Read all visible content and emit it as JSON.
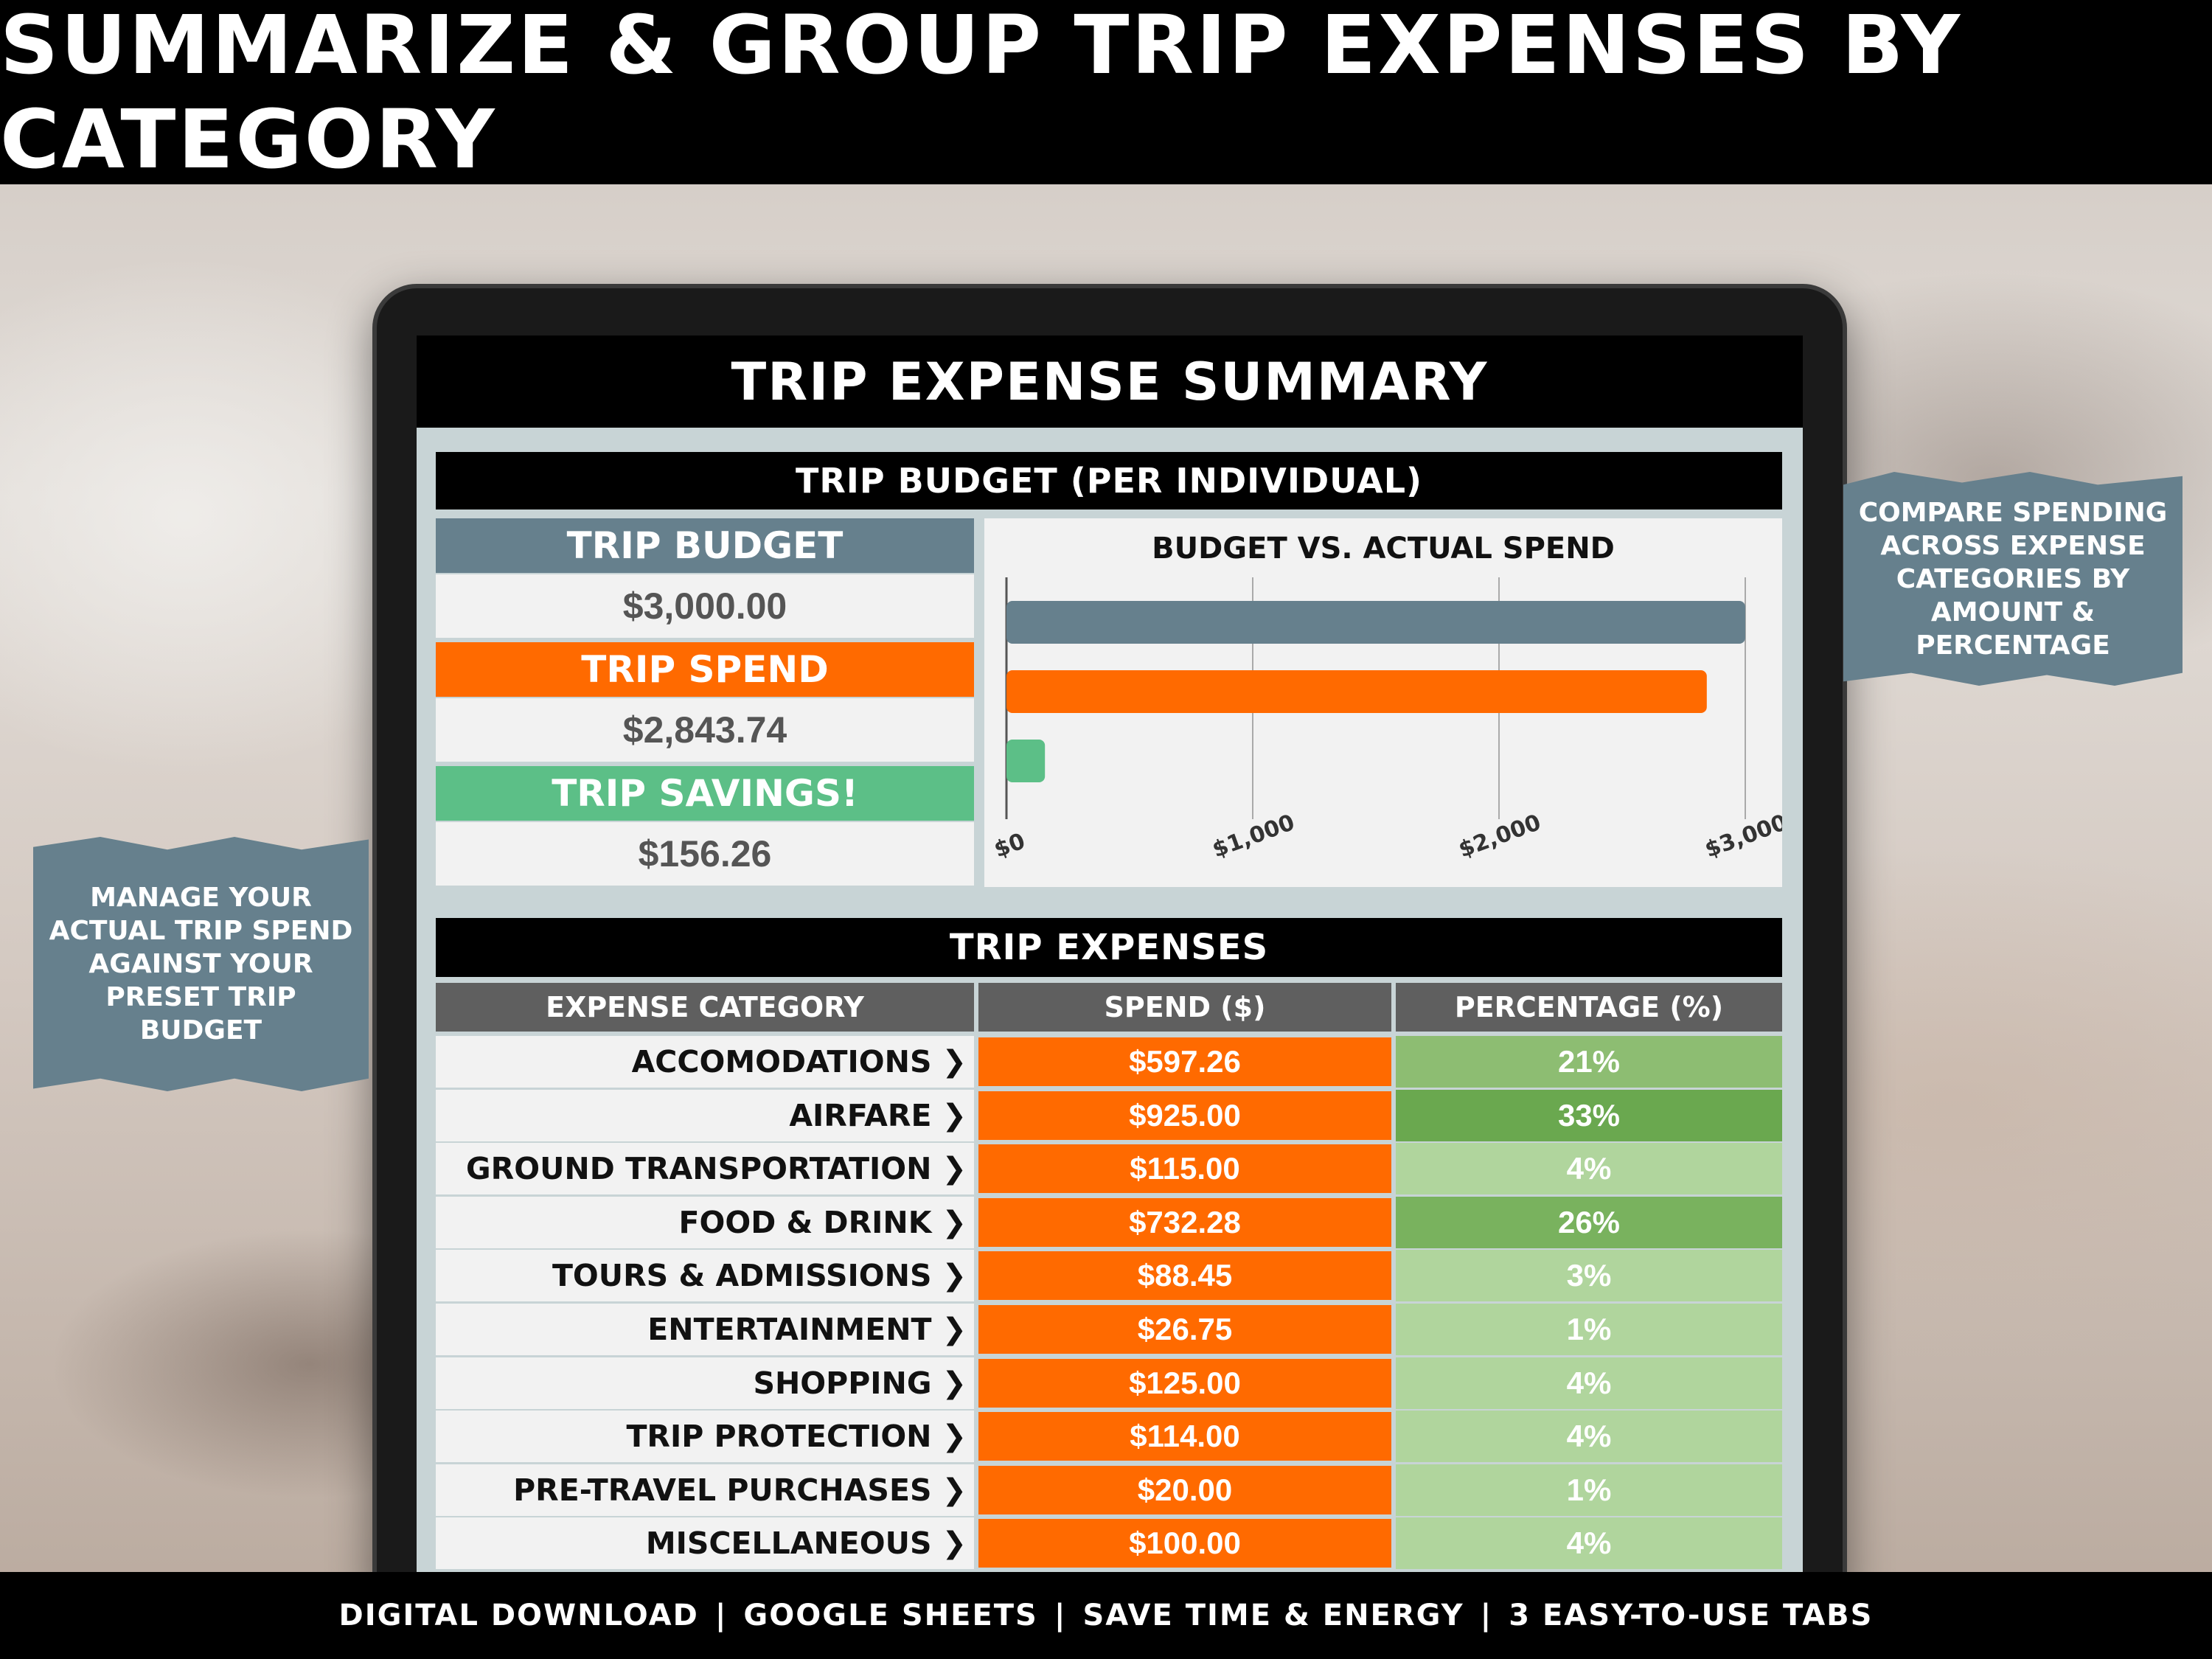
{
  "header": {
    "title": "SUMMARIZE & GROUP TRIP EXPENSES BY CATEGORY"
  },
  "footer": {
    "items": [
      "DIGITAL DOWNLOAD",
      "GOOGLE SHEETS",
      "SAVE TIME & ENERGY",
      "3 EASY-TO-USE TABS"
    ],
    "separator": "|"
  },
  "callouts": {
    "right": "COMPARE SPENDING ACROSS EXPENSE CATEGORIES BY AMOUNT & PERCENTAGE",
    "left": "MANAGE YOUR ACTUAL TRIP SPEND AGAINST YOUR PRESET TRIP BUDGET"
  },
  "sheet": {
    "title": "TRIP EXPENSE SUMMARY",
    "budget_section_title": "TRIP BUDGET (PER INDIVIDUAL)",
    "budget_label": "TRIP BUDGET",
    "budget_value": "$3,000.00",
    "spend_label": "TRIP SPEND",
    "spend_value": "$2,843.74",
    "savings_label": "TRIP SAVINGS!",
    "savings_value": "$156.26",
    "expenses_title": "TRIP EXPENSES",
    "columns": [
      "EXPENSE CATEGORY",
      "SPEND ($)",
      "PERCENTAGE (%)"
    ],
    "rows": [
      {
        "category": "ACCOMODATIONS",
        "spend": "$597.26",
        "pct": "21%",
        "pct_value": 21
      },
      {
        "category": "AIRFARE",
        "spend": "$925.00",
        "pct": "33%",
        "pct_value": 33
      },
      {
        "category": "GROUND TRANSPORTATION",
        "spend": "$115.00",
        "pct": "4%",
        "pct_value": 4
      },
      {
        "category": "FOOD & DRINK",
        "spend": "$732.28",
        "pct": "26%",
        "pct_value": 26
      },
      {
        "category": "TOURS & ADMISSIONS",
        "spend": "$88.45",
        "pct": "3%",
        "pct_value": 3
      },
      {
        "category": "ENTERTAINMENT",
        "spend": "$26.75",
        "pct": "1%",
        "pct_value": 1
      },
      {
        "category": "SHOPPING",
        "spend": "$125.00",
        "pct": "4%",
        "pct_value": 4
      },
      {
        "category": "TRIP PROTECTION",
        "spend": "$114.00",
        "pct": "4%",
        "pct_value": 4
      },
      {
        "category": "PRE-TRAVEL PURCHASES",
        "spend": "$20.00",
        "pct": "1%",
        "pct_value": 1
      },
      {
        "category": "MISCELLANEOUS",
        "spend": "$100.00",
        "pct": "4%",
        "pct_value": 4
      }
    ]
  },
  "colors": {
    "budget": "#66808d",
    "spend": "#ff6a00",
    "savings": "#5cbf87",
    "pct_dark": "#6aa84f",
    "pct_mid": "#8dbd72",
    "pct_light": "#b0d59d"
  },
  "chart_data": {
    "type": "bar",
    "orientation": "horizontal",
    "title": "BUDGET VS. ACTUAL SPEND",
    "categories": [
      "TRIP BUDGET",
      "TRIP SPEND",
      "TRIP SAVINGS!"
    ],
    "values": [
      3000,
      2843.74,
      156.26
    ],
    "xlim": [
      0,
      3000
    ],
    "xticks": [
      "$0",
      "$1,000",
      "$2,000",
      "$3,000"
    ],
    "grid": true
  }
}
